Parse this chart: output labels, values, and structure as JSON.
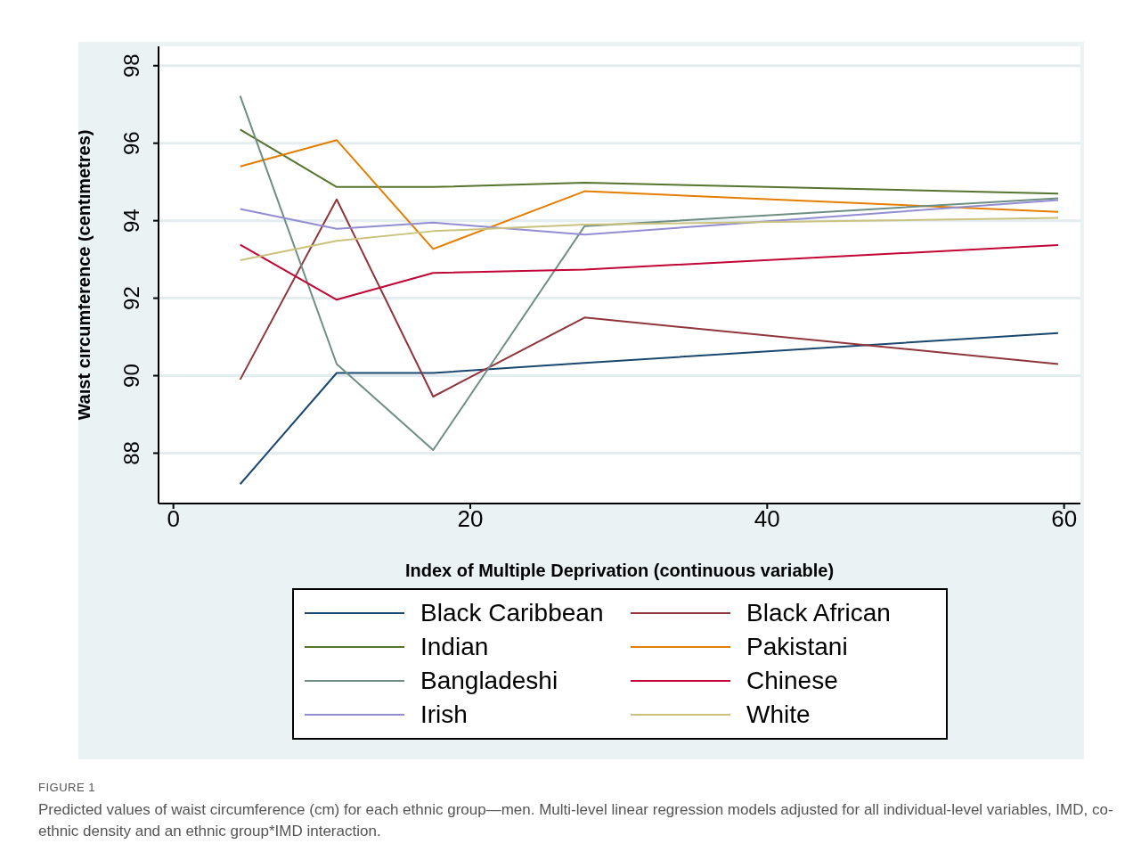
{
  "chart_data": {
    "type": "line",
    "xlabel": "Index of Multiple Deprivation (continuous variable)",
    "ylabel": "Waist circumference (centimetres)",
    "x": [
      4.5,
      11,
      17.5,
      27.7,
      59.6
    ],
    "series": [
      {
        "name": "Black Caribbean",
        "color": "#1a476f",
        "values": [
          87.2,
          90.07,
          90.07,
          90.33,
          91.1
        ]
      },
      {
        "name": "Black African",
        "color": "#90353b",
        "values": [
          89.9,
          94.55,
          89.46,
          91.5,
          90.3
        ]
      },
      {
        "name": "Indian",
        "color": "#55752f",
        "values": [
          96.35,
          94.87,
          94.87,
          94.98,
          94.7
        ]
      },
      {
        "name": "Pakistani",
        "color": "#e37e00",
        "values": [
          95.4,
          96.08,
          93.27,
          94.76,
          94.23
        ]
      },
      {
        "name": "Bangladeshi",
        "color": "#6e8e84",
        "values": [
          97.22,
          90.3,
          88.08,
          93.86,
          94.58
        ]
      },
      {
        "name": "Chinese",
        "color": "#c10534",
        "values": [
          93.38,
          91.96,
          92.65,
          92.74,
          93.37
        ]
      },
      {
        "name": "Irish",
        "color": "#938dd2",
        "values": [
          94.3,
          93.79,
          93.95,
          93.64,
          94.53
        ]
      },
      {
        "name": "White",
        "color": "#cac27e",
        "values": [
          92.98,
          93.48,
          93.73,
          93.9,
          94.07
        ]
      }
    ],
    "xlim": [
      -1,
      61.1
    ],
    "ylim": [
      86.7,
      98.5
    ],
    "xticks": [
      0,
      20,
      40,
      60
    ],
    "yticks": [
      88,
      90,
      92,
      94,
      96,
      98
    ],
    "grid": "y",
    "legend": "bottom",
    "marker": "none",
    "line_style": "solid",
    "annotations": [
      "FIGURE 1",
      "Predicted values of waist circumference (cm) for each ethnic group—men. Multi-level linear regression models adjusted for all individual-level variables, IMD, co-ethnic density and an ethnic group*IMD interaction."
    ]
  }
}
